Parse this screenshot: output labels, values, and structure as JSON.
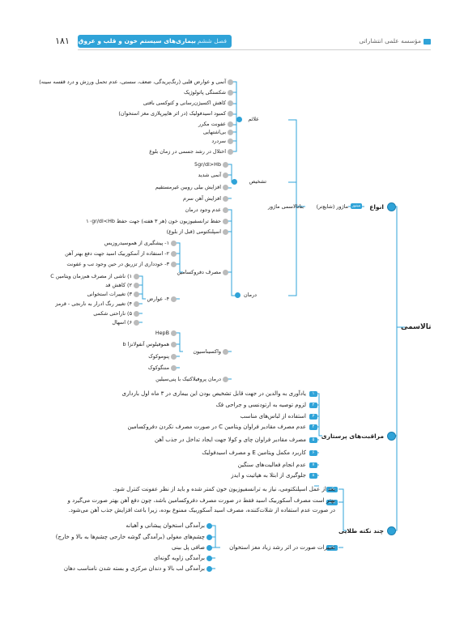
{
  "header": {
    "page_number": "۱۸۱",
    "chapter": "فصل ششم",
    "chapter_title": "بیماری‌های سیستم خون و قلب و عروق",
    "publisher": "مؤسسه علمی انتشاراتی"
  },
  "main_title": "تالاسمی",
  "types": {
    "label": "انواع",
    "minor_tag": "مینور",
    "minor_text": "ماژور (شایع‌تر)",
    "major_text": "بتاتالاسمی ماژور"
  },
  "signs": {
    "label": "علائم",
    "items": [
      "آنمی و عوارض قلبی (رنگ‌پریدگی، ضعف، سستی، عدم تحمل ورزش و درد قفسه سینه)",
      "شکستگی پاتولوژیک",
      "کاهش اکسیژن‌رسانی و کتوکسی بافتی",
      "کمبود اسیدفولیک (در اثر هایپرپلازی مغز استخوان)",
      "عفونت مکرر",
      "بی‌اشتهایی",
      "سردرد",
      "اختلال در رشد جسمی در زمان بلوغ"
    ]
  },
  "diagnosis": {
    "label": "تشخیص",
    "items": [
      "5gr/dl>Hb",
      "آنمی شدید",
      "افزایش بیلی روبین غیرمستقیم",
      "افزایش آهن سرم"
    ]
  },
  "treatment": {
    "label": "درمان",
    "items": [
      "عدم وجود درمان",
      "حفظ ترانسفیوزیون خون (هر ۳ هفته) جهت حفظ ۱۰gr/dl<Hb",
      "اسپلنکتومی (قبل از بلوغ)"
    ],
    "desferal": {
      "label": "مصرف دفروکسامین",
      "items": [
        "۱- پیشگیری از هموسیدروزیس",
        "۲- استفاده از آسکوربیک اسید جهت دفع بهتر آهن",
        "۳- خودداری از تزریق در حین وجود تب و عفونت"
      ],
      "complications": {
        "label": "۴- عوارض",
        "items": [
          "۱) ناشی از مصرف هم‌زمان ویتامین C",
          "۲) کاهش قد",
          "۳) تغییرات استخوانی",
          "۴) تغییر رنگ ادرار به نارنجی - قرمز",
          "۵) ناراحتی شکمی",
          "۶) اسهال"
        ]
      }
    },
    "vaccines": {
      "label": "واکسیناسیون",
      "items": [
        "HepB",
        "هموفیلوس آنفولانزا b",
        "پنوموکوک",
        "مننگوکوک"
      ]
    },
    "penicillin": "درمان پروفیلاکتیک با پنی‌سیلین"
  },
  "nursing": {
    "label": "مراقبت‌های پرستاری",
    "items": [
      {
        "tag": "۱",
        "text": "یادآوری به والدین در جهت قابل تشخیص بودن این بیماری در ۳ ماه اول بارداری"
      },
      {
        "tag": "۲",
        "text": "لزوم توصیه به ارتودنسی و جراحی فک"
      },
      {
        "tag": "۳",
        "text": "استفاده از لباس‌های مناسب"
      },
      {
        "tag": "۴",
        "text": "عدم مصرف مقادیر فراوان ویتامین C در صورت مصرف نکردن دفروکسامین"
      },
      {
        "tag": "۵",
        "text": "مصرف مقادیر فراوان چای و کولا جهت ایجاد تداخل در جذب آهن"
      },
      {
        "tag": "۶",
        "text": "کاربرد مکمل ویتامین E و مصرف اسیدفولیک"
      },
      {
        "tag": "۷",
        "text": "عدم انجام فعالیت‌های سنگین"
      },
      {
        "tag": "۸",
        "text": "جلوگیری از ابتلا به هپاتیت و ایدز"
      }
    ]
  },
  "tips": {
    "label": "چند نکته طلایی",
    "note1_tag": "نکته",
    "note1": "بعد از عمل اسپلنکتومی، نیاز به ترانسفیوزیون خون کمتر شده و باید از نظر عفونت کنترل شود.",
    "note2_tag": "نکته",
    "note2_lines": [
      "بهتر است مصرف آسکوربیک اسید فقط در صورت مصرف دفروکسامین باشد، چون دفع آهن بهتر صورت می‌گیرد و",
      "در صورت عدم استفاده از شلات‌کننده، مصرف اسید آسکوربیک ممنوع بوده، زیرا باعث افزایش جذب آهن می‌شود."
    ],
    "note3_tag": "نکته",
    "note3": "تغییرات صورت در اثر رشد زیاد مغز استخوان",
    "face_changes": [
      "برآمدگی استخوان پیشانی و آهیانه",
      "چشم‌های مغولی (برآمدگی گوشه خارجی چشم‌ها به بالا و خارج)",
      "صافی پل بینی",
      "برآمدگی زاویه گونه‌ای",
      "برآمدگی لب بالا و دندان مرکزی و بسته شدن نامناسب دهان"
    ]
  },
  "colors": {
    "accent": "#2fa3d8",
    "line": "#2fa3d8",
    "dot": "#bbbbbb"
  }
}
